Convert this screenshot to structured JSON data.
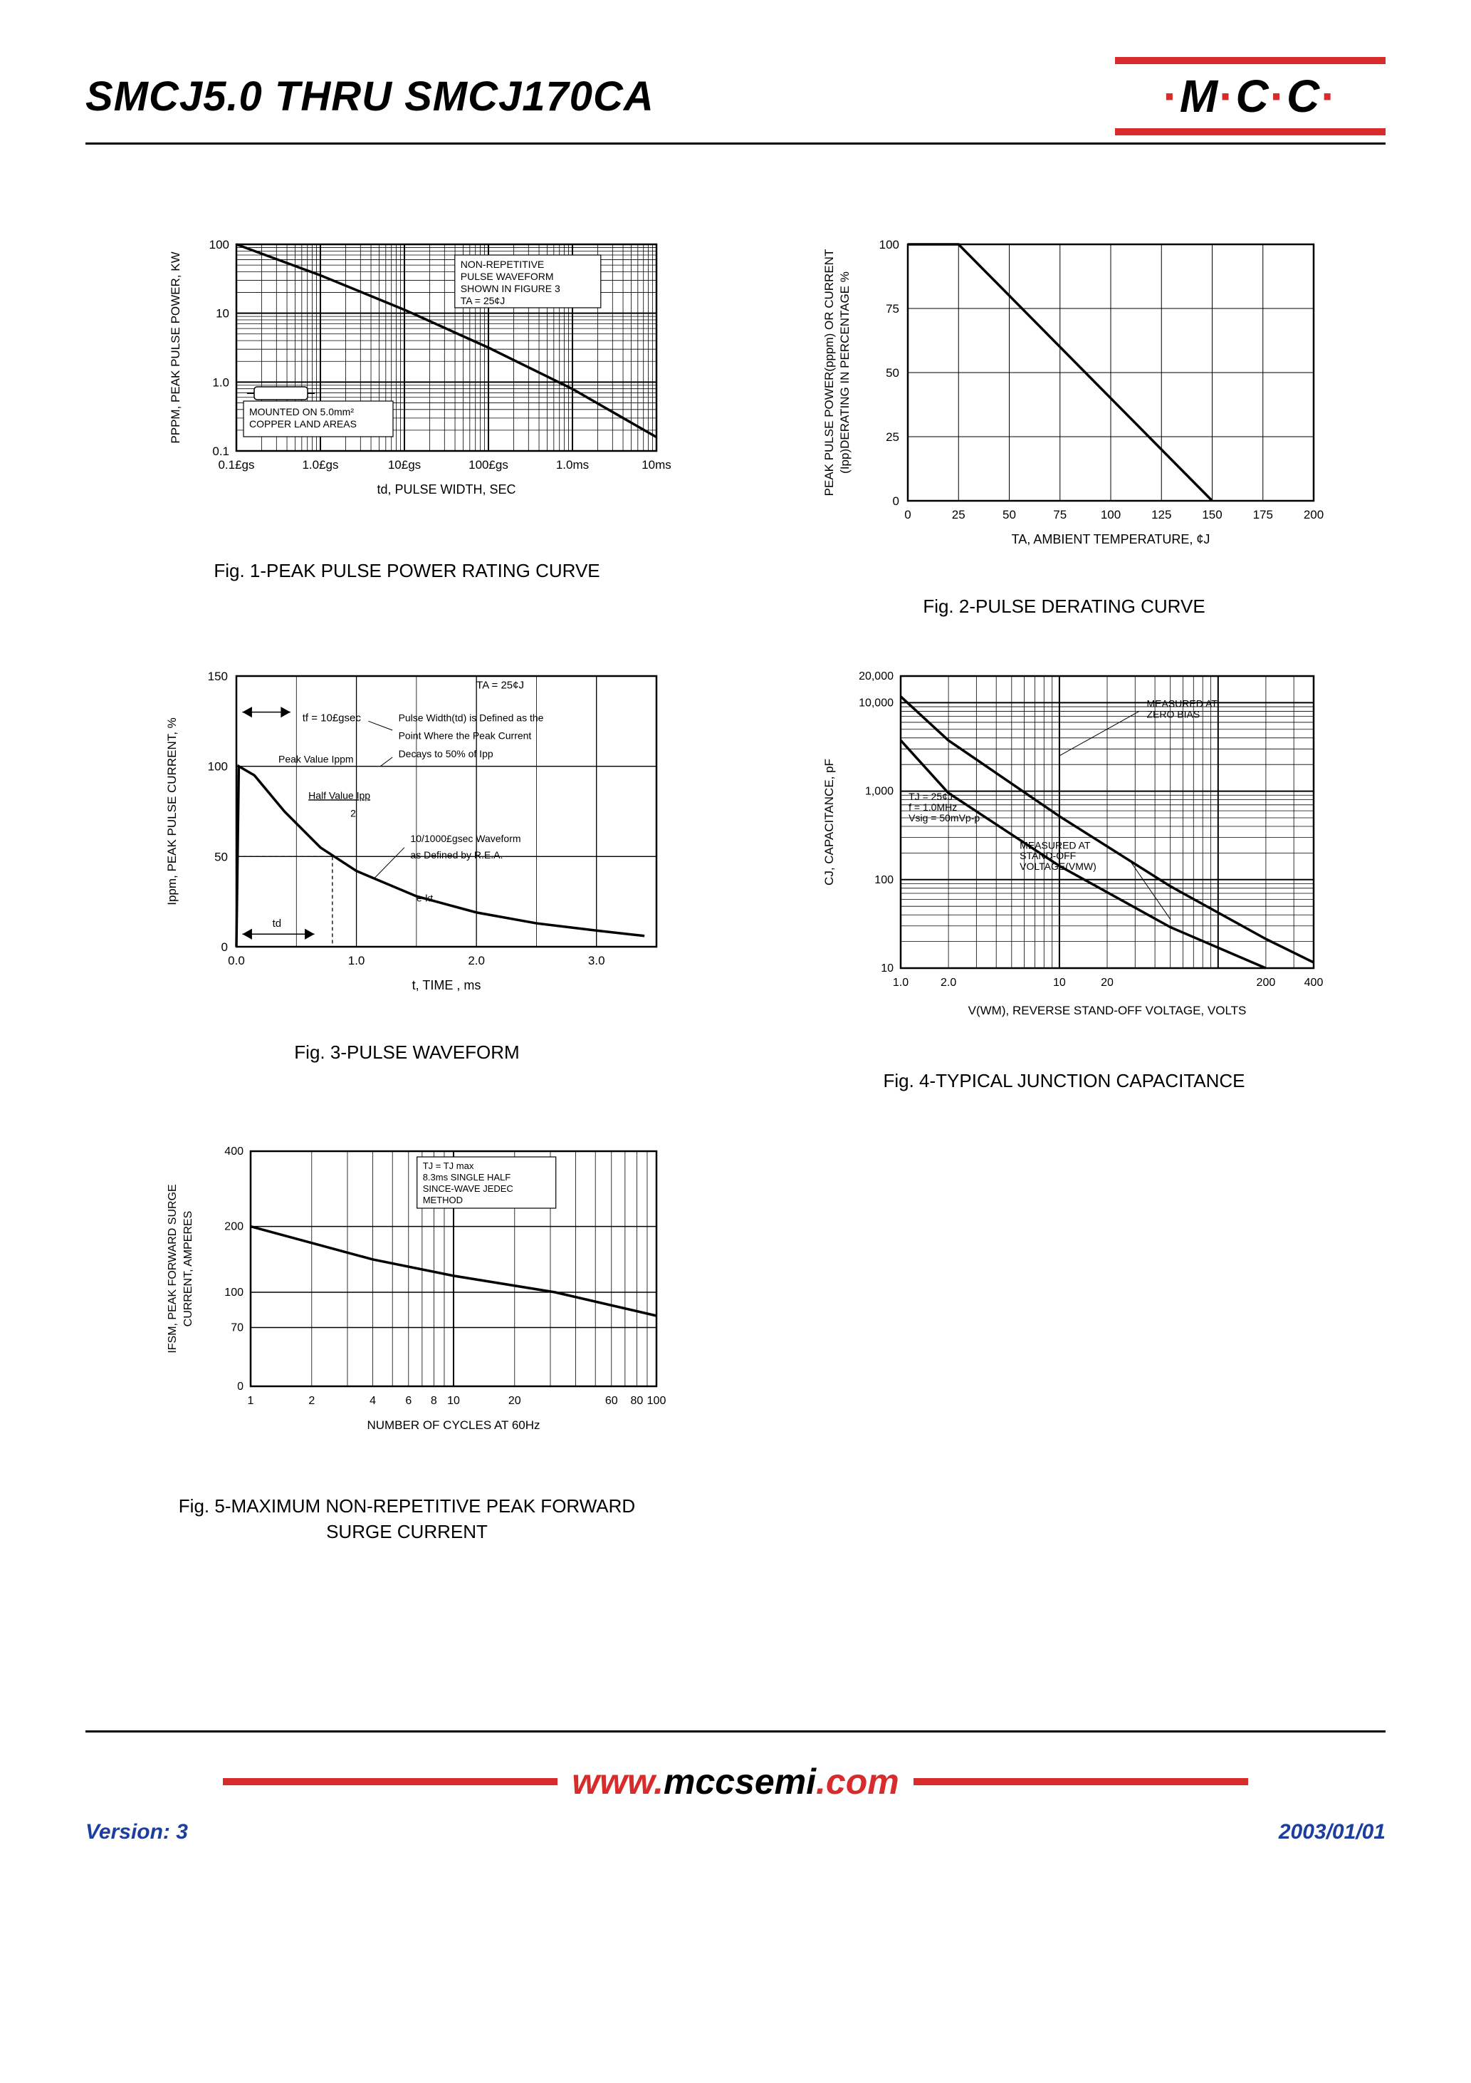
{
  "header": {
    "title": "SMCJ5.0 THRU SMCJ170CA",
    "logo_text": "M C C",
    "logo_bar_color": "#d82c2c",
    "logo_dot_color": "#d82c2c"
  },
  "colors": {
    "black": "#000000",
    "red": "#d82c2c",
    "blue": "#1a3fa0"
  },
  "fig1": {
    "caption": "Fig. 1-PEAK PULSE POWER RATING CURVE",
    "ylabel": "PPPM, PEAK PULSE POWER, KW",
    "xlabel": "td, PULSE WIDTH, SEC",
    "note_top": [
      "NON-REPETITIVE",
      "PULSE WAVEFORM",
      "SHOWN IN FIGURE 3",
      "TA = 25¢J"
    ],
    "note_bottom": [
      "MOUNTED ON 5.0mm²",
      "COPPER LAND AREAS"
    ],
    "x_ticks": [
      "0.1£gs",
      "1.0£gs",
      "10£gs",
      "100£gs",
      "1.0ms",
      "10ms"
    ],
    "y_ticks": [
      "0.1",
      "1.0",
      "10",
      "100"
    ],
    "type": "loglog",
    "curve": [
      [
        0,
        3
      ],
      [
        1,
        2.55
      ],
      [
        2,
        2.05
      ],
      [
        3,
        1.5
      ],
      [
        4,
        0.9
      ],
      [
        5,
        0.2
      ]
    ]
  },
  "fig2": {
    "caption": "Fig. 2-PULSE DERATING CURVE",
    "ylabel": "PEAK PULSE POWER(pppm) OR CURRENT\n(Ipp)DERATING IN PERCENTAGE %",
    "xlabel": "TA, AMBIENT TEMPERATURE, ¢J",
    "x_ticks": [
      0,
      25,
      50,
      75,
      100,
      125,
      150,
      175,
      200
    ],
    "y_ticks": [
      0,
      25,
      50,
      75,
      100
    ],
    "xlim": [
      0,
      200
    ],
    "ylim": [
      0,
      100
    ],
    "line": [
      [
        0,
        100
      ],
      [
        25,
        100
      ],
      [
        150,
        0
      ]
    ]
  },
  "fig3": {
    "caption": "Fig. 3-PULSE WAVEFORM",
    "ylabel": "Ippm, PEAK PULSE CURRENT, %",
    "xlabel": "t, TIME , ms",
    "x_ticks": [
      0,
      1.0,
      2.0,
      3.0
    ],
    "y_ticks": [
      0,
      50,
      100,
      150
    ],
    "xlim": [
      0,
      3.5
    ],
    "ylim": [
      0,
      150
    ],
    "annotations": {
      "ta": "TA = 25¢J",
      "tf": "tf = 10£gsec",
      "pw_def": [
        "Pulse Width(td) is Defined as the",
        "Point Where the Peak Current",
        "Decays to 50% of Ipp"
      ],
      "peak": "Peak Value Ippm",
      "half": "Half Value Ipp",
      "half2": "2",
      "wave_def": [
        "10/1000£gsec Waveform",
        "as Defined by R.E.A."
      ],
      "ekt": "e-kt",
      "td": "td"
    },
    "curve": [
      [
        0,
        0
      ],
      [
        0.02,
        100
      ],
      [
        0.15,
        95
      ],
      [
        0.4,
        75
      ],
      [
        0.7,
        55
      ],
      [
        1.0,
        42
      ],
      [
        1.5,
        28
      ],
      [
        2.0,
        19
      ],
      [
        2.5,
        13
      ],
      [
        3.0,
        9
      ],
      [
        3.4,
        6
      ]
    ]
  },
  "fig4": {
    "caption": "Fig. 4-TYPICAL JUNCTION CAPACITANCE",
    "ylabel": "CJ, CAPACITANCE, pF",
    "xlabel": "V(WM), REVERSE STAND-OFF VOLTAGE, VOLTS",
    "x_ticks": [
      "1.0",
      "2.0",
      "10",
      "20",
      "200",
      "400"
    ],
    "y_ticks": [
      "10",
      "100",
      "1,000",
      "10,000",
      "20,000"
    ],
    "note_top": [
      "MEASURED AT",
      "ZERO BIAS"
    ],
    "note_mid": [
      "TJ = 25¢J",
      "f = 1.0MHz",
      "Vsig = 50mVp-p"
    ],
    "note_low": [
      "MEASURED AT",
      "STAND-OFF",
      "VOLTAGE(VMW)"
    ],
    "curve1": [
      [
        0,
        0.93
      ],
      [
        0.3,
        0.78
      ],
      [
        1,
        0.52
      ],
      [
        1.7,
        0.28
      ],
      [
        2.3,
        0.1
      ],
      [
        2.6,
        0.02
      ]
    ],
    "curve2": [
      [
        0,
        0.78
      ],
      [
        0.3,
        0.6
      ],
      [
        1,
        0.35
      ],
      [
        1.7,
        0.14
      ],
      [
        2.3,
        0.0
      ]
    ]
  },
  "fig5": {
    "caption": "Fig. 5-MAXIMUM NON-REPETITIVE PEAK FORWARD\nSURGE CURRENT",
    "ylabel": "IFSM, PEAK FORWARD SURGE\nCURRENT, AMPERES",
    "xlabel": "NUMBER OF CYCLES AT 60Hz",
    "x_ticks": [
      "1",
      "2",
      "4",
      "6",
      "8",
      "10",
      "20",
      "60",
      "80",
      "100"
    ],
    "y_ticks": [
      "0",
      "70",
      "100",
      "200",
      "400"
    ],
    "note": [
      "TJ = TJ max",
      "8.3ms SINGLE HALF",
      "SINCE-WAVE JEDEC",
      "METHOD"
    ],
    "curve": [
      [
        0,
        200
      ],
      [
        0.3,
        175
      ],
      [
        0.6,
        150
      ],
      [
        1,
        125
      ],
      [
        1.5,
        100
      ],
      [
        2,
        80
      ]
    ]
  },
  "footer": {
    "url_pre": "www.",
    "url_main": "mccsemi",
    "url_suf": ".com",
    "version": "Version: 3",
    "date": "2003/01/01"
  }
}
